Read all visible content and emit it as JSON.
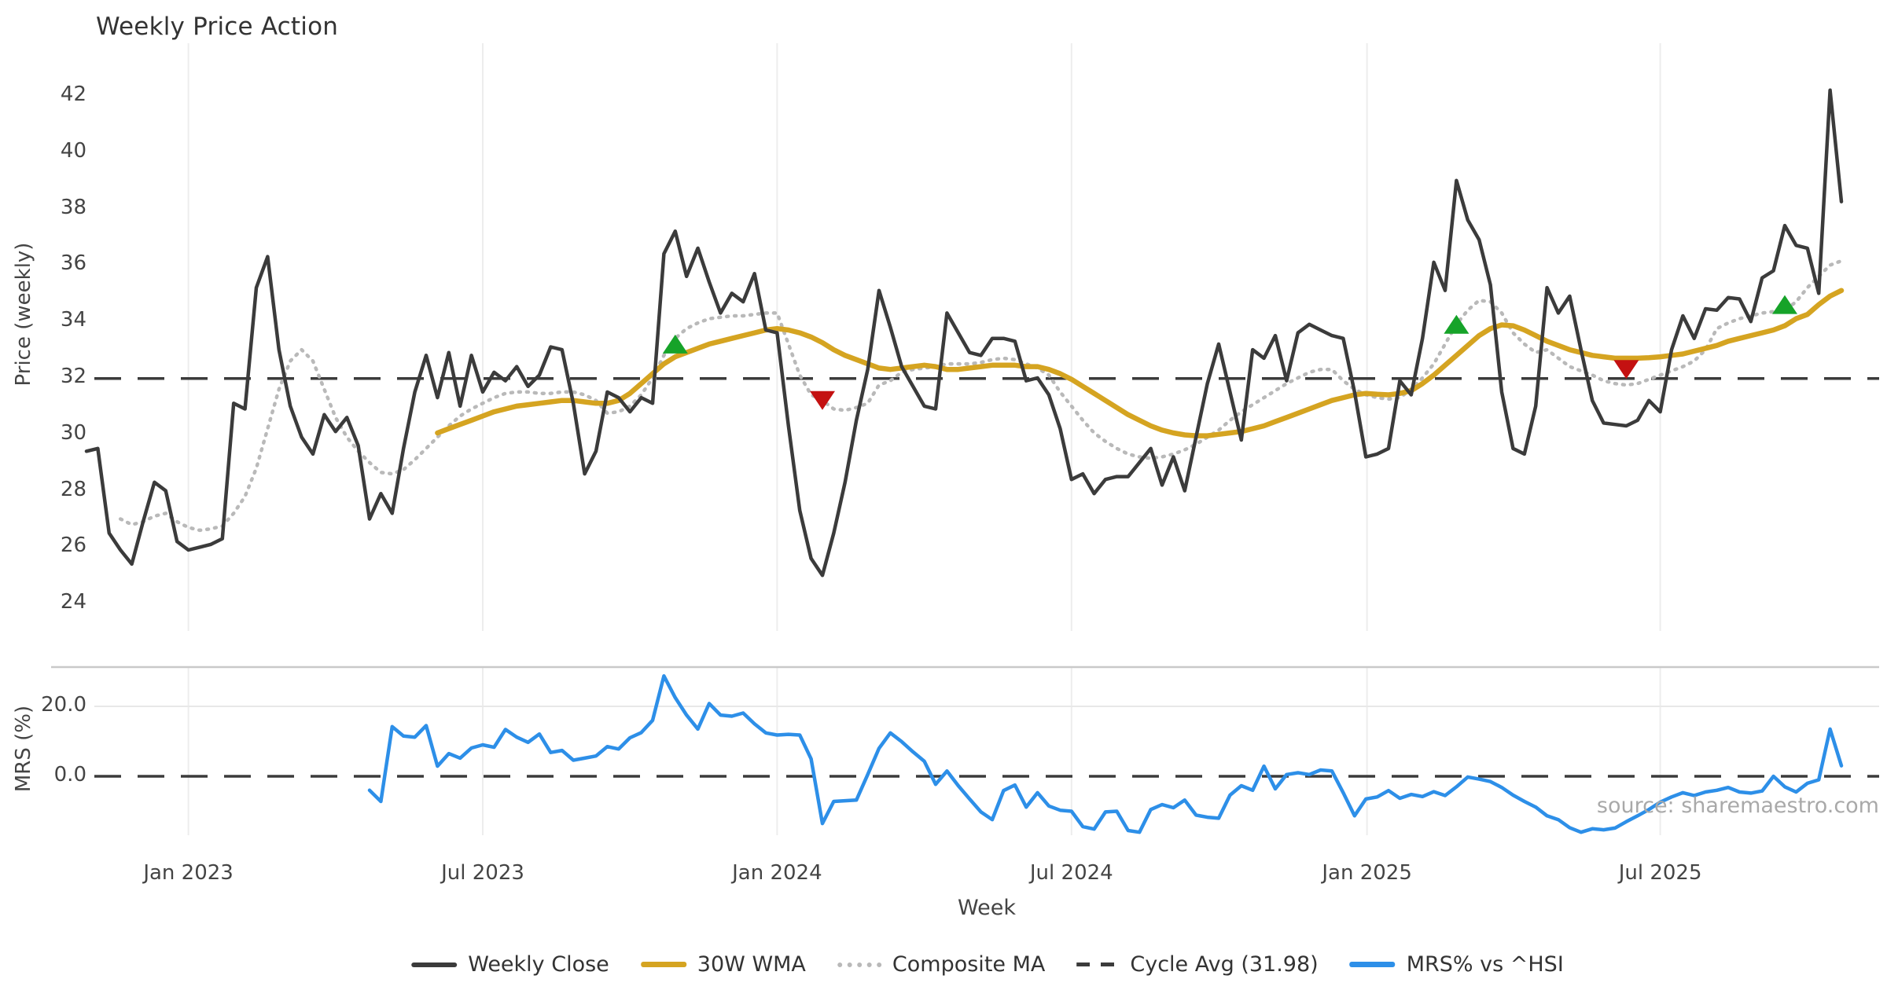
{
  "title": "Weekly Price Action",
  "watermark": "source: sharemaestro.com",
  "price_panel": {
    "ylabel": "Price (weekly)",
    "yticks": [
      42,
      40,
      38,
      36,
      34,
      32,
      30,
      28,
      26,
      24
    ]
  },
  "mrs_panel": {
    "ylabel": "MRS (%)",
    "yticks": [
      "20.0",
      "0.0"
    ],
    "ytick_values": [
      20,
      0
    ]
  },
  "x_axis": {
    "label": "Week",
    "ticks": [
      {
        "label": "Jan 2023",
        "week": 9.0
      },
      {
        "label": "Jul 2023",
        "week": 35.0
      },
      {
        "label": "Jan 2024",
        "week": 61.0
      },
      {
        "label": "Jul 2024",
        "week": 87.0
      },
      {
        "label": "Jan 2025",
        "week": 113.1
      },
      {
        "label": "Jul 2025",
        "week": 139.0
      }
    ]
  },
  "legend": {
    "items": [
      {
        "label": "Weekly Close",
        "swatch": "solid-dark-line",
        "color": "#3b3b3b"
      },
      {
        "label": "30W WMA",
        "swatch": "solid-gold-line",
        "color": "#d5a421"
      },
      {
        "label": "Composite MA",
        "swatch": "dotted-gray-line",
        "color": "#b9b9b9"
      },
      {
        "label": "Cycle Avg (31.98)",
        "swatch": "dashed-dark-line",
        "color": "#3b3b3b"
      },
      {
        "label": "MRS% vs ^HSI",
        "swatch": "solid-blue-line",
        "color": "#2d8fe8"
      }
    ]
  },
  "chart_data": {
    "type": "line",
    "x_start_date": "2022-10-31",
    "x_step": "1 week",
    "cycle_avg": 31.98,
    "price_ylim": [
      23.5,
      42.8
    ],
    "mrs_ylim": [
      -18,
      30
    ],
    "grid": "vertical-only",
    "series": [
      {
        "name": "Weekly Close",
        "panel": "price",
        "color": "#3b3b3b",
        "style": "solid",
        "start_week": 0,
        "values": [
          29.4,
          29.5,
          26.5,
          25.9,
          25.4,
          26.9,
          28.3,
          28.0,
          26.2,
          25.9,
          26.0,
          26.1,
          26.3,
          31.1,
          30.9,
          35.2,
          36.3,
          33.0,
          31.0,
          29.9,
          29.3,
          30.7,
          30.1,
          30.6,
          29.6,
          27.0,
          27.9,
          27.2,
          29.5,
          31.5,
          32.8,
          31.3,
          32.9,
          31.0,
          32.8,
          31.5,
          32.2,
          31.9,
          32.4,
          31.7,
          32.1,
          33.1,
          33.0,
          31.1,
          28.6,
          29.4,
          31.5,
          31.3,
          30.8,
          31.3,
          31.1,
          36.4,
          37.2,
          35.6,
          36.6,
          35.4,
          34.3,
          35.0,
          34.7,
          35.7,
          33.7,
          33.6,
          30.3,
          27.3,
          25.6,
          25.0,
          26.5,
          28.3,
          30.5,
          32.3,
          35.1,
          33.8,
          32.4,
          31.7,
          31.0,
          30.9,
          34.3,
          33.6,
          32.9,
          32.8,
          33.4,
          33.4,
          33.3,
          31.9,
          32.0,
          31.4,
          30.2,
          28.4,
          28.6,
          27.9,
          28.4,
          28.5,
          28.5,
          29.0,
          29.5,
          28.2,
          29.2,
          28.0,
          29.9,
          31.8,
          33.2,
          31.5,
          29.8,
          33.0,
          32.7,
          33.5,
          31.9,
          33.6,
          33.9,
          33.7,
          33.5,
          33.4,
          31.5,
          29.2,
          29.3,
          29.5,
          31.9,
          31.4,
          33.4,
          36.1,
          35.1,
          39.0,
          37.6,
          36.9,
          35.3,
          31.5,
          29.5,
          29.3,
          31.0,
          35.2,
          34.3,
          34.9,
          33.0,
          31.2,
          30.4,
          30.35,
          30.3,
          30.5,
          31.2,
          30.8,
          33.0,
          34.2,
          33.4,
          34.45,
          34.4,
          34.85,
          34.8,
          34.0,
          35.55,
          35.8,
          37.4,
          36.7,
          36.6,
          35.0,
          42.2,
          38.25
        ]
      },
      {
        "name": "30W WMA",
        "panel": "price",
        "color": "#d5a421",
        "style": "solid",
        "start_week": 31,
        "values": [
          30.05,
          30.2,
          30.35,
          30.5,
          30.65,
          30.8,
          30.9,
          31.0,
          31.05,
          31.1,
          31.15,
          31.2,
          31.2,
          31.15,
          31.1,
          31.1,
          31.2,
          31.45,
          31.8,
          32.15,
          32.5,
          32.75,
          32.9,
          33.05,
          33.2,
          33.3,
          33.4,
          33.5,
          33.6,
          33.7,
          33.75,
          33.7,
          33.6,
          33.45,
          33.25,
          33.0,
          32.8,
          32.65,
          32.5,
          32.35,
          32.3,
          32.35,
          32.4,
          32.45,
          32.4,
          32.3,
          32.3,
          32.35,
          32.4,
          32.45,
          32.45,
          32.45,
          32.4,
          32.4,
          32.3,
          32.15,
          31.95,
          31.7,
          31.45,
          31.2,
          30.95,
          30.7,
          30.5,
          30.3,
          30.15,
          30.05,
          29.98,
          29.95,
          29.95,
          30.0,
          30.05,
          30.1,
          30.2,
          30.3,
          30.45,
          30.6,
          30.75,
          30.9,
          31.05,
          31.2,
          31.3,
          31.4,
          31.45,
          31.42,
          31.4,
          31.45,
          31.55,
          31.8,
          32.1,
          32.45,
          32.8,
          33.15,
          33.5,
          33.75,
          33.88,
          33.85,
          33.7,
          33.5,
          33.3,
          33.15,
          33.0,
          32.9,
          32.8,
          32.75,
          32.7,
          32.7,
          32.7,
          32.72,
          32.75,
          32.8,
          32.85,
          32.95,
          33.05,
          33.15,
          33.3,
          33.4,
          33.5,
          33.6,
          33.7,
          33.85,
          34.1,
          34.25,
          34.6,
          34.9,
          35.1
        ]
      },
      {
        "name": "Composite MA",
        "panel": "price",
        "color": "#b9b9b9",
        "style": "dotted",
        "start_week": 3,
        "values": [
          27.0,
          26.8,
          26.9,
          27.1,
          27.2,
          26.9,
          26.7,
          26.6,
          26.65,
          26.75,
          27.2,
          27.8,
          28.8,
          30.2,
          31.6,
          32.6,
          33.0,
          32.6,
          31.6,
          30.6,
          29.9,
          29.4,
          29.0,
          28.65,
          28.6,
          28.75,
          29.1,
          29.5,
          29.9,
          30.3,
          30.65,
          30.9,
          31.1,
          31.3,
          31.45,
          31.5,
          31.5,
          31.45,
          31.45,
          31.5,
          31.5,
          31.4,
          31.2,
          30.75,
          30.8,
          31.0,
          31.4,
          32.0,
          32.8,
          33.4,
          33.75,
          33.95,
          34.1,
          34.15,
          34.2,
          34.2,
          34.25,
          34.3,
          34.3,
          33.2,
          32.1,
          31.4,
          31.2,
          30.9,
          30.85,
          30.95,
          31.1,
          31.75,
          31.9,
          32.2,
          32.3,
          32.35,
          32.4,
          32.5,
          32.5,
          32.5,
          32.55,
          32.65,
          32.7,
          32.65,
          32.5,
          32.35,
          32.1,
          31.5,
          31.0,
          30.5,
          30.05,
          29.75,
          29.5,
          29.3,
          29.2,
          29.15,
          29.2,
          29.3,
          29.45,
          29.65,
          29.9,
          30.15,
          30.5,
          30.8,
          31.05,
          31.3,
          31.55,
          31.8,
          32.0,
          32.2,
          32.3,
          32.3,
          31.9,
          31.6,
          31.4,
          31.3,
          31.25,
          31.3,
          31.6,
          32.0,
          32.5,
          33.2,
          33.9,
          34.4,
          34.75,
          34.7,
          34.3,
          33.6,
          33.2,
          32.9,
          33.0,
          32.7,
          32.4,
          32.25,
          32.1,
          31.9,
          31.8,
          31.75,
          31.8,
          31.95,
          32.1,
          32.25,
          32.4,
          32.6,
          33.0,
          33.75,
          33.95,
          34.1,
          34.2,
          34.3,
          34.35,
          34.4,
          34.7,
          35.2,
          35.6,
          36.0,
          36.15
        ]
      },
      {
        "name": "MRS% vs ^HSI",
        "panel": "mrs",
        "color": "#2d8fe8",
        "style": "solid",
        "start_week": 25,
        "values": [
          -4.0,
          -7.2,
          14.2,
          11.5,
          11.2,
          14.5,
          2.9,
          6.5,
          5.2,
          8.1,
          9.0,
          8.3,
          13.4,
          11.2,
          9.7,
          12.1,
          6.8,
          7.4,
          4.6,
          5.2,
          5.8,
          8.5,
          7.8,
          11.0,
          12.5,
          16.0,
          28.7,
          22.5,
          17.5,
          13.5,
          20.8,
          17.5,
          17.2,
          18.1,
          15.0,
          12.4,
          11.8,
          12.0,
          11.8,
          5.0,
          -13.5,
          -7.2,
          -7.0,
          -6.8,
          0.5,
          8.0,
          12.4,
          9.9,
          7.0,
          4.3,
          -2.3,
          1.5,
          -2.7,
          -6.5,
          -10.2,
          -12.4,
          -4.1,
          -2.5,
          -8.8,
          -4.7,
          -8.5,
          -9.7,
          -10.0,
          -14.4,
          -15.1,
          -10.2,
          -10.0,
          -15.5,
          -16.0,
          -9.5,
          -8.1,
          -9.0,
          -6.8,
          -11.1,
          -11.7,
          -12.0,
          -5.4,
          -2.7,
          -4.0,
          2.9,
          -3.6,
          0.5,
          1.0,
          0.5,
          1.8,
          1.5,
          -4.7,
          -11.3,
          -6.5,
          -5.9,
          -4.1,
          -6.3,
          -5.2,
          -5.8,
          -4.4,
          -5.5,
          -3.0,
          -0.2,
          -0.8,
          -1.5,
          -3.2,
          -5.4,
          -7.2,
          -8.8,
          -11.3,
          -12.4,
          -14.7,
          -16.0,
          -15.0,
          -15.3,
          -14.8,
          -13.0,
          -11.3,
          -9.5,
          -7.4,
          -5.9,
          -4.7,
          -5.5,
          -4.5,
          -4.0,
          -3.2,
          -4.5,
          -4.8,
          -4.2,
          0.0,
          -3.0,
          -4.5,
          -2.0,
          -1.0,
          13.5,
          3.0
        ]
      }
    ],
    "markers": [
      {
        "week": 52,
        "value": 33.2,
        "direction": "up",
        "color": "#16a329"
      },
      {
        "week": 65,
        "value": 31.2,
        "direction": "down",
        "color": "#c41111"
      },
      {
        "week": 121,
        "value": 33.9,
        "direction": "up",
        "color": "#16a329"
      },
      {
        "week": 136,
        "value": 32.3,
        "direction": "down",
        "color": "#c41111"
      },
      {
        "week": 150,
        "value": 34.6,
        "direction": "up",
        "color": "#16a329"
      }
    ]
  }
}
